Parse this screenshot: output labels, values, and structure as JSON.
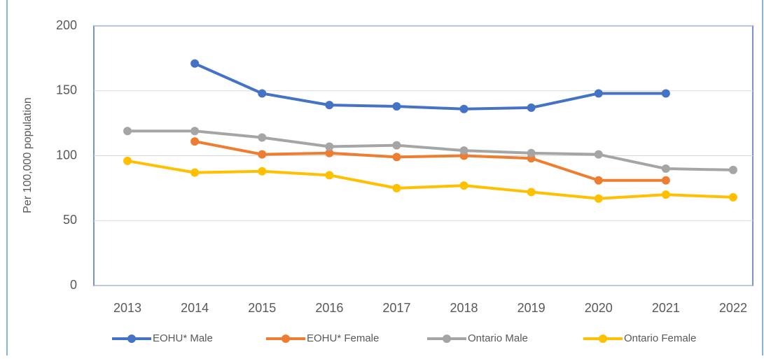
{
  "chart_data": {
    "type": "line",
    "y_label": "Per 100,000 population",
    "categories": [
      "2013",
      "2014",
      "2015",
      "2016",
      "2017",
      "2018",
      "2019",
      "2020",
      "2021",
      "2022"
    ],
    "series": [
      {
        "name": "EOHU* Male",
        "color": "#4472c4",
        "values": [
          null,
          171,
          148,
          139,
          138,
          136,
          137,
          148,
          148,
          null
        ]
      },
      {
        "name": "EOHU* Female",
        "color": "#ed7d31",
        "values": [
          null,
          111,
          101,
          102,
          99,
          100,
          98,
          81,
          81,
          null
        ]
      },
      {
        "name": "Ontario Male",
        "color": "#a5a5a5",
        "values": [
          119,
          119,
          114,
          107,
          108,
          104,
          102,
          101,
          90,
          89
        ]
      },
      {
        "name": "Ontario Female",
        "color": "#ffc000",
        "values": [
          96,
          87,
          88,
          85,
          75,
          77,
          72,
          67,
          70,
          68
        ]
      }
    ],
    "ylim": [
      0,
      200
    ],
    "yticks": [
      0,
      50,
      100,
      150,
      200
    ],
    "grid": true,
    "legend": "bottom"
  }
}
